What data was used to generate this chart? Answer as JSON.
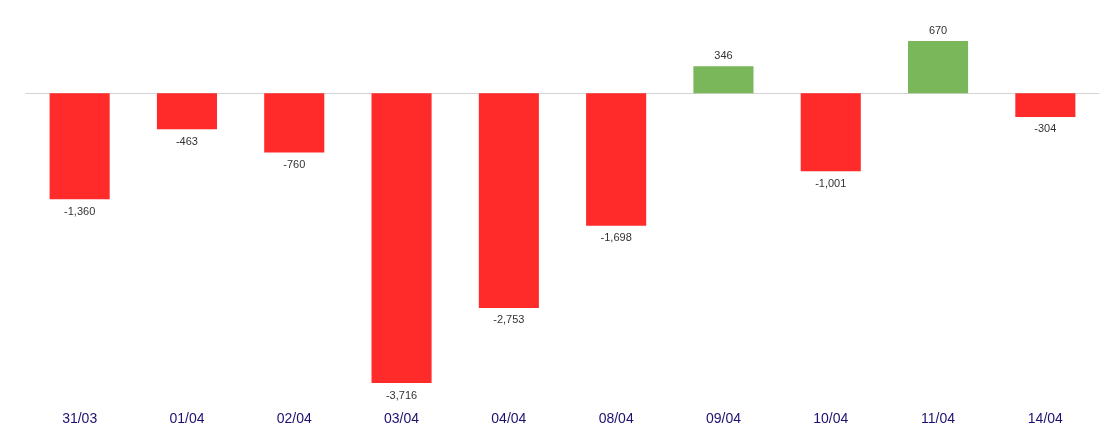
{
  "chart_data": {
    "type": "bar",
    "categories": [
      "31/03",
      "01/04",
      "02/04",
      "03/04",
      "04/04",
      "08/04",
      "09/04",
      "10/04",
      "11/04",
      "14/04"
    ],
    "values": [
      -1360,
      -463,
      -760,
      -3716,
      -2753,
      -1698,
      346,
      -1001,
      670,
      -304
    ],
    "colors": [
      "#ff2a2a",
      "#ff2a2a",
      "#ff2a2a",
      "#ff2a2a",
      "#ff2a2a",
      "#ff2a2a",
      "#7ab65a",
      "#ff2a2a",
      "#7ab65a",
      "#ff2a2a"
    ],
    "value_labels": [
      "-1,360",
      "-463",
      "-760",
      "-3,716",
      "-2,753",
      "-1,698",
      "346",
      "-1,001",
      "670",
      "-304"
    ],
    "tick_labels": "x"
  }
}
